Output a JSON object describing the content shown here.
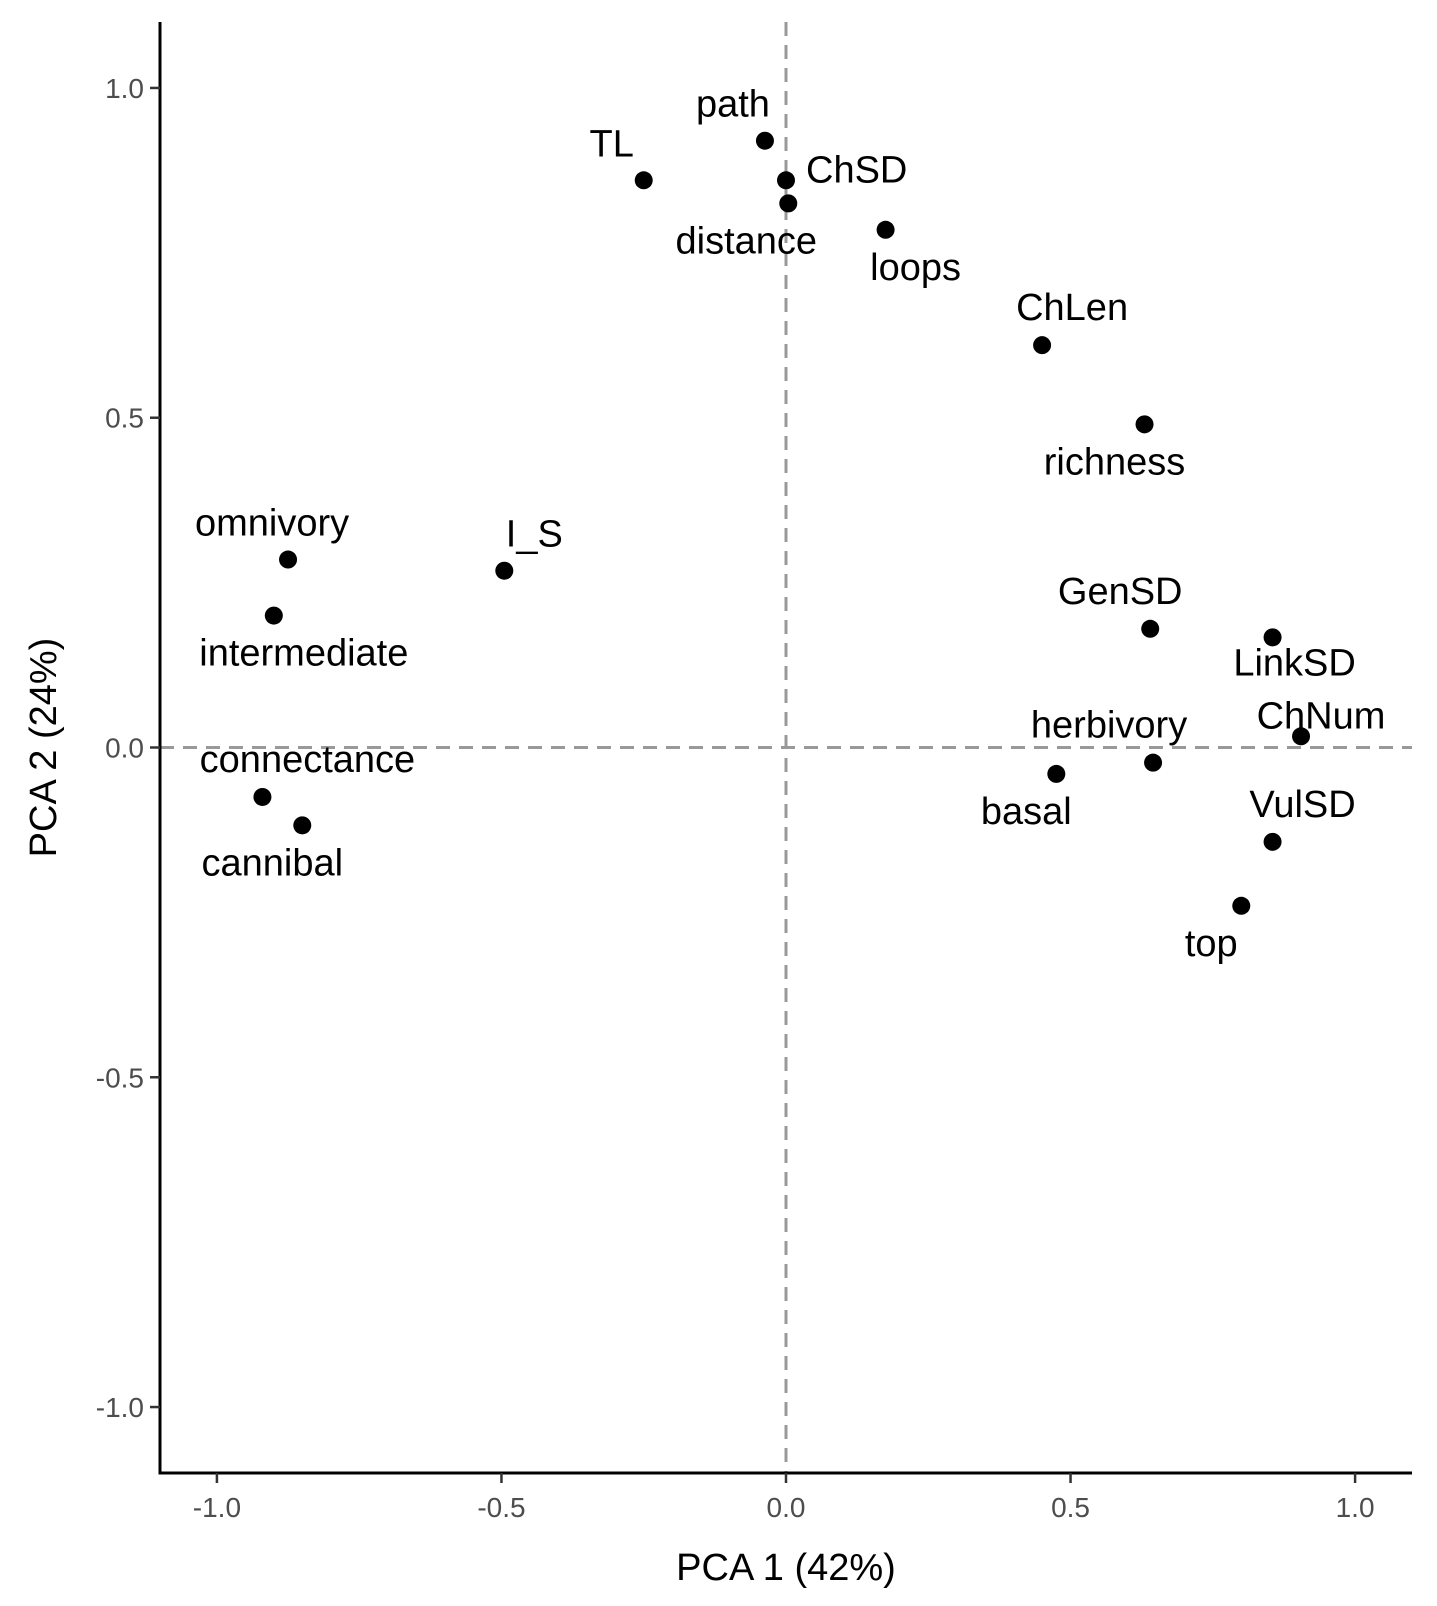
{
  "chart_data": {
    "type": "scatter",
    "xlabel": "PCA 1 (42%)",
    "ylabel": "PCA 2 (24%)",
    "xlim": [
      -1.1,
      1.1
    ],
    "ylim": [
      -1.1,
      1.1
    ],
    "x_ticks": [
      -1.0,
      -0.5,
      0.0,
      0.5,
      1.0
    ],
    "x_tick_labels": [
      "-1.0",
      "-0.5",
      "0.0",
      "0.5",
      "1.0"
    ],
    "y_ticks": [
      -1.0,
      -0.5,
      0.0,
      0.5,
      1.0
    ],
    "y_tick_labels": [
      "-1.0",
      "-0.5",
      "0.0",
      "0.5",
      "1.0"
    ],
    "reference_lines": {
      "x": 0,
      "y": 0,
      "style": "dashed",
      "color": "#999999"
    },
    "grid": false,
    "point_color": "#000000",
    "points": [
      {
        "label": "path",
        "x": -0.037,
        "y": 0.92
      },
      {
        "label": "TL",
        "x": -0.25,
        "y": 0.86
      },
      {
        "label": "ChSD",
        "x": 0.0,
        "y": 0.86
      },
      {
        "label": "distance",
        "x": 0.004,
        "y": 0.825
      },
      {
        "label": "loops",
        "x": 0.175,
        "y": 0.785
      },
      {
        "label": "ChLen",
        "x": 0.45,
        "y": 0.61
      },
      {
        "label": "richness",
        "x": 0.63,
        "y": 0.49
      },
      {
        "label": "omnivory",
        "x": -0.875,
        "y": 0.285
      },
      {
        "label": "I_S",
        "x": -0.495,
        "y": 0.268
      },
      {
        "label": "intermediate",
        "x": -0.9,
        "y": 0.2
      },
      {
        "label": "GenSD",
        "x": 0.64,
        "y": 0.18
      },
      {
        "label": "LinkSD",
        "x": 0.855,
        "y": 0.167
      },
      {
        "label": "ChNum",
        "x": 0.905,
        "y": 0.017
      },
      {
        "label": "herbivory",
        "x": 0.645,
        "y": -0.023
      },
      {
        "label": "basal",
        "x": 0.475,
        "y": -0.04
      },
      {
        "label": "connectance",
        "x": -0.92,
        "y": -0.075
      },
      {
        "label": "cannibal",
        "x": -0.85,
        "y": -0.118
      },
      {
        "label": "VulSD",
        "x": 0.855,
        "y": -0.143
      },
      {
        "label": "top",
        "x": 0.8,
        "y": -0.24
      }
    ]
  }
}
